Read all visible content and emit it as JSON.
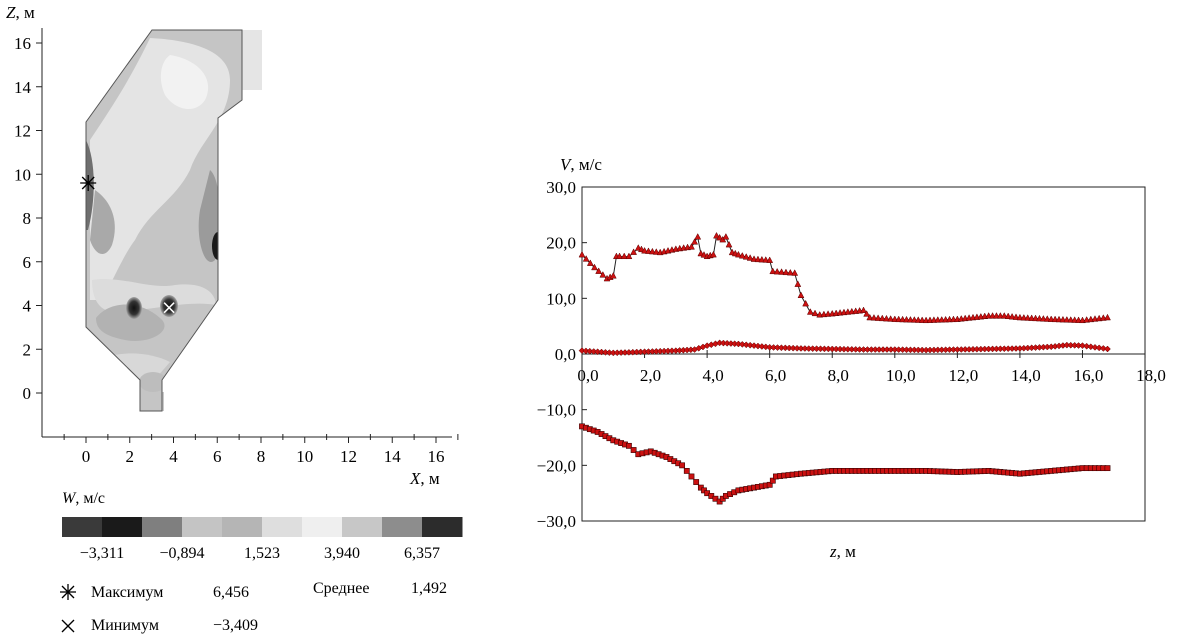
{
  "chart_data": [
    {
      "type": "heatmap",
      "xlabel_var": "X",
      "xlabel_unit": ", м",
      "ylabel_var": "Z",
      "ylabel_unit": ", м",
      "xlim": [
        -2,
        17
      ],
      "ylim": [
        -2,
        17
      ],
      "xticks": [
        "0",
        "2",
        "4",
        "6",
        "8",
        "10",
        "12",
        "14",
        "16"
      ],
      "xtick_values": [
        0,
        2,
        4,
        6,
        8,
        10,
        12,
        14,
        16
      ],
      "yticks": [
        "0",
        "2",
        "4",
        "6",
        "8",
        "10",
        "12",
        "14",
        "16"
      ],
      "ytick_values": [
        0,
        2,
        4,
        6,
        8,
        10,
        12,
        14,
        16
      ],
      "colorbar": {
        "label_var": "W",
        "label_unit": ", м/с",
        "colors": [
          "#3a3a3a",
          "#1a1a1a",
          "#7f7f7f",
          "#c4c4c4",
          "#b5b5b5",
          "#dedede",
          "#efefef",
          "#c7c7c7",
          "#8d8d8d",
          "#2c2c2c"
        ],
        "tick_labels": [
          "−3,311",
          "−0,894",
          "1,523",
          "3,940",
          "6,357"
        ]
      },
      "stats": {
        "max_label": "Максимум",
        "max_value": "6,456",
        "min_label": "Минимум",
        "min_value": "−3,409",
        "mean_label": "Среднее",
        "mean_value": "1,492"
      },
      "max_point": [
        0.1,
        9.6
      ],
      "min_point": [
        3.8,
        3.9
      ]
    },
    {
      "type": "line",
      "ylabel_var": "V",
      "ylabel_unit": ", м/с",
      "xlabel_var": "z",
      "xlabel_unit": ",  м",
      "xlim": [
        0,
        18
      ],
      "ylim": [
        -30,
        30
      ],
      "xticks": [
        "0,0",
        "2,0",
        "4,0",
        "6,0",
        "8,0",
        "10,0",
        "12,0",
        "14,0",
        "16,0",
        "18,0"
      ],
      "xtick_values": [
        0,
        2,
        4,
        6,
        8,
        10,
        12,
        14,
        16,
        18
      ],
      "yticks": [
        "30,0",
        "20,0",
        "10,0",
        "0,0",
        "−10,0",
        "−20,0",
        "−30,0"
      ],
      "ytick_values": [
        30,
        20,
        10,
        0,
        -10,
        -20,
        -30
      ],
      "grid": false,
      "series": [
        {
          "marker": "triangle",
          "color": "#cc1111",
          "x": [
            0.0,
            0.4,
            0.8,
            1.0,
            1.1,
            1.2,
            1.5,
            1.8,
            2.0,
            2.5,
            3.0,
            3.5,
            3.7,
            3.8,
            4.0,
            4.2,
            4.3,
            4.5,
            4.6,
            4.8,
            5.0,
            5.5,
            6.0,
            6.1,
            6.8,
            7.0,
            7.3,
            7.6,
            8.0,
            8.5,
            9.0,
            9.2,
            10.0,
            11.0,
            12.0,
            13.0,
            13.5,
            14.0,
            15.0,
            16.0,
            16.8
          ],
          "y": [
            17.8,
            15.5,
            13.5,
            14.0,
            17.5,
            17.5,
            17.5,
            19.0,
            18.5,
            18.2,
            18.8,
            19.2,
            21.0,
            18.0,
            17.5,
            17.8,
            21.2,
            20.5,
            21.0,
            18.2,
            17.8,
            17.0,
            16.8,
            14.8,
            14.5,
            10.5,
            7.5,
            7.0,
            7.2,
            7.5,
            7.8,
            6.5,
            6.2,
            6.0,
            6.2,
            6.8,
            6.8,
            6.5,
            6.2,
            6.0,
            6.5
          ]
        },
        {
          "marker": "diamond",
          "color": "#cc1111",
          "x": [
            0.0,
            1.0,
            2.0,
            3.0,
            3.6,
            4.0,
            4.4,
            5.0,
            6.0,
            7.0,
            8.0,
            9.0,
            10.0,
            11.0,
            12.0,
            13.0,
            14.0,
            15.0,
            15.5,
            16.0,
            16.8
          ],
          "y": [
            0.6,
            0.2,
            0.4,
            0.6,
            0.8,
            1.5,
            2.0,
            1.8,
            1.2,
            1.0,
            0.9,
            0.8,
            0.8,
            0.7,
            0.8,
            0.9,
            1.0,
            1.3,
            1.6,
            1.5,
            0.9
          ]
        },
        {
          "marker": "square",
          "color": "#cc1111",
          "x": [
            0.0,
            0.5,
            1.0,
            1.5,
            1.8,
            2.2,
            2.7,
            3.2,
            3.5,
            3.8,
            4.0,
            4.4,
            4.6,
            5.0,
            5.5,
            6.0,
            6.2,
            7.0,
            8.0,
            9.0,
            10.0,
            11.0,
            12.0,
            13.0,
            14.0,
            15.0,
            16.0,
            16.8
          ],
          "y": [
            -13.0,
            -14.0,
            -15.5,
            -16.5,
            -18.0,
            -17.5,
            -18.5,
            -20.0,
            -22.0,
            -24.0,
            -25.0,
            -26.5,
            -25.5,
            -24.5,
            -24.0,
            -23.5,
            -22.0,
            -21.5,
            -21.0,
            -21.0,
            -21.0,
            -21.0,
            -21.2,
            -21.0,
            -21.5,
            -21.0,
            -20.5,
            -20.5
          ]
        }
      ]
    }
  ]
}
